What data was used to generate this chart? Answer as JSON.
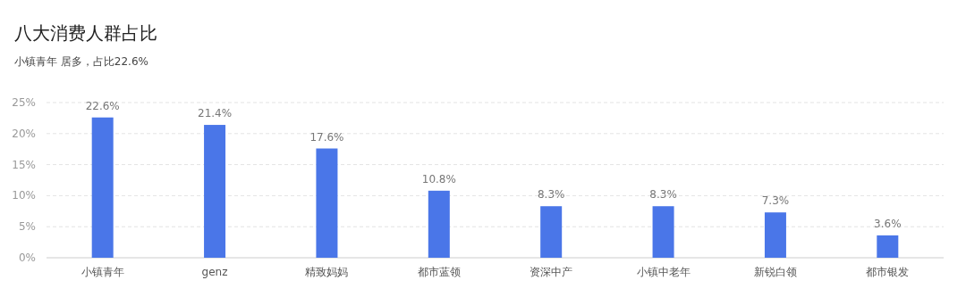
{
  "chart_data": {
    "type": "bar",
    "title": "八大消费人群占比",
    "subtitle": "小镇青年 居多，占比22.6%",
    "categories": [
      "小镇青年",
      "genz",
      "精致妈妈",
      "都市蓝领",
      "资深中产",
      "小镇中老年",
      "新锐白领",
      "都市银发"
    ],
    "values": [
      22.6,
      21.4,
      17.6,
      10.8,
      8.3,
      8.3,
      7.3,
      3.6
    ],
    "value_labels": [
      "22.6%",
      "21.4%",
      "17.6%",
      "10.8%",
      "8.3%",
      "8.3%",
      "7.3%",
      "3.6%"
    ],
    "color": "#4a76e8",
    "ylim": [
      0,
      25
    ],
    "yticks": [
      {
        "value": 0,
        "label": "0%"
      },
      {
        "value": 5,
        "label": "5%"
      },
      {
        "value": 10,
        "label": "10%"
      },
      {
        "value": 15,
        "label": "15%"
      },
      {
        "value": 20,
        "label": "20%"
      },
      {
        "value": 25,
        "label": "25%"
      }
    ],
    "grid": "y"
  }
}
